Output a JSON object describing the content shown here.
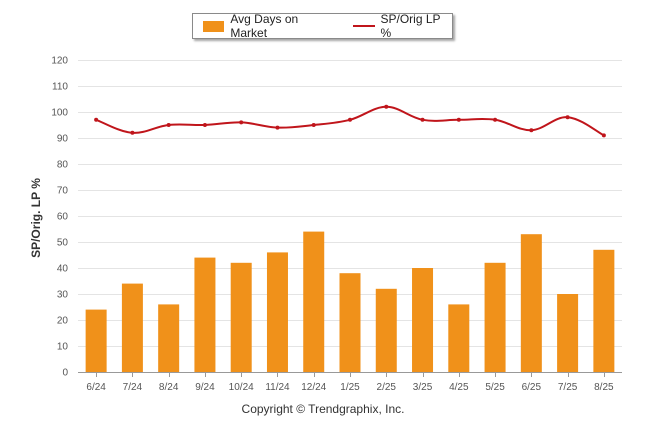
{
  "legend": {
    "bar_label": "Avg Days on Market",
    "line_label": "SP/Orig LP %"
  },
  "footer": {
    "copyright": "Copyright © Trendgraphix, Inc."
  },
  "colors": {
    "bar": "#f0911a",
    "line": "#c0151b",
    "grid": "#e4e4e4",
    "axis": "#999999"
  },
  "chart_data": {
    "type": "bar",
    "title": "",
    "xlabel": "",
    "ylabel": "SP/Orig. LP %",
    "ylim": [
      0,
      120
    ],
    "yticks": [
      0,
      10,
      20,
      30,
      40,
      50,
      60,
      70,
      80,
      90,
      100,
      110,
      120
    ],
    "grid": true,
    "legend_position": "top-center",
    "categories": [
      "6/24",
      "7/24",
      "8/24",
      "9/24",
      "10/24",
      "11/24",
      "12/24",
      "1/25",
      "2/25",
      "3/25",
      "4/25",
      "5/25",
      "6/25",
      "7/25",
      "8/25"
    ],
    "series": [
      {
        "name": "Avg Days on Market",
        "type": "bar",
        "values": [
          24,
          34,
          26,
          44,
          42,
          46,
          54,
          38,
          32,
          40,
          26,
          42,
          53,
          30,
          47
        ]
      },
      {
        "name": "SP/Orig LP %",
        "type": "line",
        "values": [
          97,
          92,
          95,
          95,
          96,
          94,
          95,
          97,
          102,
          97,
          97,
          97,
          93,
          98,
          91
        ]
      }
    ]
  }
}
